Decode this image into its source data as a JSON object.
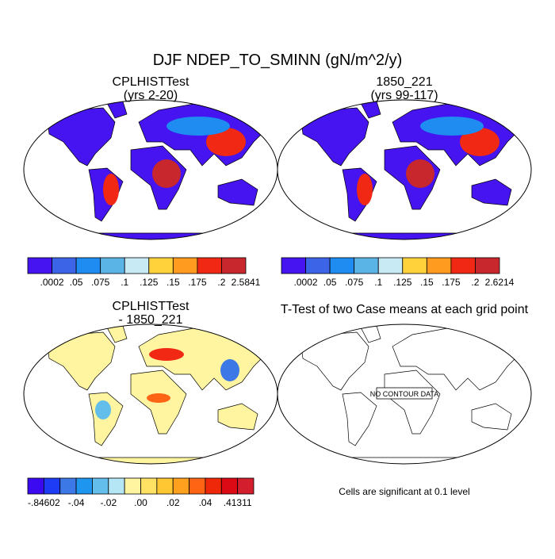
{
  "title": "DJF NDEP_TO_SMINN (gN/m^2/y)",
  "panels": [
    {
      "title": "CPLHISTTest",
      "subtitle": "(yrs 2-20)",
      "colorbar": {
        "colors": [
          "#4514f0",
          "#3c64e6",
          "#1e8cf0",
          "#5ab4e6",
          "#c8eaf5",
          "#ffd23c",
          "#ff9b1e",
          "#f02814",
          "#c8282d"
        ],
        "labels": [
          ".0002",
          ".05",
          ".075",
          ".1",
          ".125",
          ".15",
          ".175",
          ".2",
          "2.5841"
        ]
      }
    },
    {
      "title": "1850_221",
      "subtitle": "(yrs 99-117)",
      "colorbar": {
        "colors": [
          "#4514f0",
          "#3c64e6",
          "#1e8cf0",
          "#5ab4e6",
          "#c8eaf5",
          "#ffd23c",
          "#ff9b1e",
          "#f02814",
          "#c8282d"
        ],
        "labels": [
          ".0002",
          ".05",
          ".075",
          ".1",
          ".125",
          ".15",
          ".175",
          ".2",
          "2.6214"
        ]
      }
    },
    {
      "title": "CPLHISTTest",
      "subtitle": "- 1850_221",
      "colorbar": {
        "colors": [
          "#3c0af0",
          "#1e3cf5",
          "#3c78e6",
          "#1e96f0",
          "#64beeb",
          "#b4e6f5",
          "#fff5a0",
          "#ffe164",
          "#ffc832",
          "#ffa01e",
          "#ff6414",
          "#f0280a",
          "#dc0a14",
          "#d21e2d"
        ],
        "labels": [
          "-.84602",
          "-.04",
          "-.02",
          ".00",
          ".02",
          ".04",
          ".41311"
        ]
      }
    },
    {
      "title": "T-Test of two Case means at each grid point",
      "annotation": "NO CONTOUR DATA",
      "note": "Cells are significant at 0.1 level"
    }
  ]
}
